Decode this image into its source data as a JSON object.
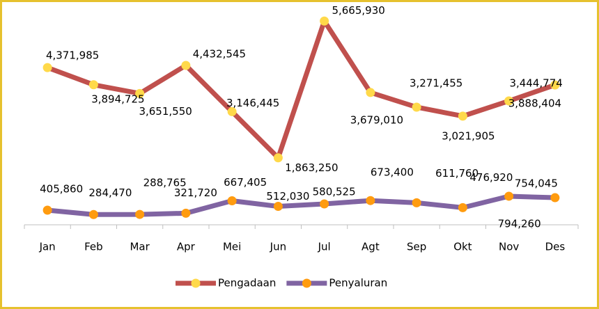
{
  "chart_data": {
    "type": "line",
    "categories": [
      "Jan",
      "Feb",
      "Mar",
      "Apr",
      "Mei",
      "Jun",
      "Jul",
      "Agt",
      "Sep",
      "Okt",
      "Nov",
      "Des"
    ],
    "ylim": [
      0,
      6000000
    ],
    "series": [
      {
        "name": "Pengadaan",
        "color": "#c0504d",
        "marker_color": "#ffd94a",
        "values": [
          4371985,
          3894725,
          3651550,
          4432545,
          3146445,
          1863250,
          5665930,
          3679010,
          3271455,
          3021905,
          3444774,
          3888404
        ],
        "value_labels": [
          "4,371,985",
          "3,894,725",
          "3,651,550",
          "4,432,545",
          "3,146,445",
          "1,863,250",
          "5,665,930",
          "3,679,010",
          "3,271,455",
          "3,021,905",
          "3,444,774",
          "3,888,404"
        ]
      },
      {
        "name": "Penyaluran",
        "color": "#8064a2",
        "marker_color": "#ff9b0f",
        "values": [
          405860,
          284470,
          288765,
          321720,
          667405,
          512030,
          580525,
          673400,
          611760,
          476920,
          794260,
          754045
        ],
        "value_labels": [
          "405,860",
          "284,470",
          "288,765",
          "321,720",
          "667,405",
          "512,030",
          "580,525",
          "673,400",
          "611,760",
          "476,920",
          "794,260",
          "754,045"
        ]
      }
    ],
    "legend": "bottom"
  }
}
